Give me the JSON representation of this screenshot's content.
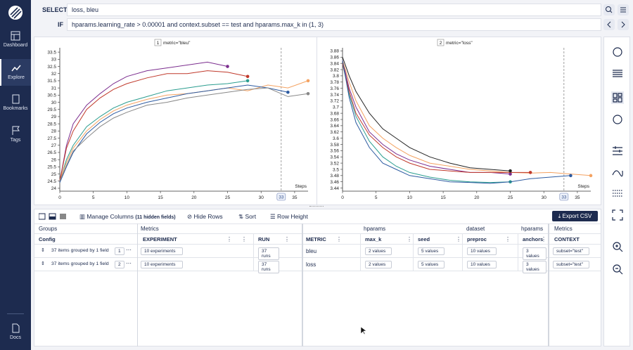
{
  "nav": [
    "Dashboard",
    "Explore",
    "Bookmarks",
    "Tags",
    "Docs"
  ],
  "query": {
    "select_label": "SELECT",
    "select": "loss, bleu",
    "if_label": "IF",
    "if": "hparams.learning_rate > 0.00001 and context.subset == test and hparams.max_k in (1, 3)"
  },
  "chart_data": [
    {
      "type": "line",
      "panel": "1",
      "title": "metric=\"bleu\"",
      "xlabel": "Steps",
      "cursor": 33,
      "x": [
        0,
        1,
        2,
        4,
        6,
        8,
        10,
        13,
        16,
        19,
        22,
        25,
        28,
        31,
        34,
        37
      ],
      "xlim": [
        0,
        37
      ],
      "xticks": [
        0,
        5,
        10,
        15,
        20,
        25,
        30,
        35
      ],
      "ylim": [
        23.8,
        33.8
      ],
      "yticks": [
        24,
        24.5,
        25,
        25.5,
        26,
        26.5,
        27,
        27.5,
        28,
        28.5,
        29,
        29.5,
        30,
        30.5,
        31,
        31.5,
        32,
        32.5,
        33,
        33.5
      ],
      "series": [
        {
          "color": "#7b2d8e",
          "values": [
            24.5,
            27,
            28.5,
            29.8,
            30.6,
            31.3,
            31.8,
            32.2,
            32.4,
            32.6,
            32.8,
            32.5,
            null,
            null,
            null,
            null
          ]
        },
        {
          "color": "#2a9d8f",
          "values": [
            24.5,
            26,
            27,
            28.3,
            29,
            29.6,
            30,
            30.4,
            30.8,
            31,
            31.2,
            31.3,
            31.5,
            null,
            null,
            null
          ]
        },
        {
          "color": "#f4a261",
          "values": [
            24.6,
            25.8,
            26.8,
            28,
            28.8,
            29.4,
            29.8,
            30.2,
            30.5,
            30.6,
            30.8,
            31,
            30.8,
            31.2,
            31,
            31.5
          ]
        },
        {
          "color": "#c0392b",
          "values": [
            24.5,
            26.8,
            28,
            29.5,
            30.3,
            30.9,
            31.3,
            31.7,
            32,
            32,
            32.2,
            32.1,
            31.8,
            null,
            null,
            null
          ]
        },
        {
          "color": "#2c5aa0",
          "values": [
            24.4,
            25.5,
            26.5,
            27.8,
            28.6,
            29.2,
            29.6,
            30,
            30.3,
            30.6,
            30.8,
            31,
            31.2,
            31,
            30.7,
            null
          ]
        },
        {
          "color": "#888888",
          "values": [
            24.5,
            25.6,
            26.6,
            27.5,
            28.3,
            28.9,
            29.3,
            29.8,
            30,
            30.3,
            30.5,
            30.7,
            30.9,
            31,
            30.4,
            30.6
          ]
        }
      ]
    },
    {
      "type": "line",
      "panel": "2",
      "title": "metric=\"loss\"",
      "xlabel": "Steps",
      "cursor": 33,
      "x": [
        0,
        1,
        2,
        4,
        6,
        8,
        10,
        13,
        16,
        19,
        22,
        25,
        28,
        31,
        34,
        37
      ],
      "xlim": [
        0,
        37
      ],
      "xticks": [
        0,
        5,
        10,
        15,
        20,
        25,
        30,
        35
      ],
      "ylim": [
        3.43,
        3.89
      ],
      "yticks": [
        3.44,
        3.46,
        3.48,
        3.5,
        3.52,
        3.54,
        3.56,
        3.58,
        3.6,
        3.62,
        3.64,
        3.66,
        3.68,
        3.7,
        3.72,
        3.74,
        3.76,
        3.78,
        3.8,
        3.82,
        3.84,
        3.86,
        3.88
      ],
      "series": [
        {
          "color": "#7b2d8e",
          "values": [
            3.85,
            3.76,
            3.7,
            3.62,
            3.58,
            3.55,
            3.53,
            3.51,
            3.5,
            3.49,
            3.49,
            3.485,
            null,
            null,
            null,
            null
          ]
        },
        {
          "color": "#2a9d8f",
          "values": [
            3.84,
            3.74,
            3.67,
            3.59,
            3.54,
            3.51,
            3.49,
            3.475,
            3.465,
            3.46,
            3.458,
            3.46,
            null,
            null,
            null,
            null
          ]
        },
        {
          "color": "#f4a261",
          "values": [
            3.85,
            3.78,
            3.72,
            3.64,
            3.6,
            3.57,
            3.545,
            3.52,
            3.51,
            3.5,
            3.495,
            3.49,
            3.488,
            3.49,
            3.485,
            3.48
          ]
        },
        {
          "color": "#c0392b",
          "values": [
            3.84,
            3.75,
            3.68,
            3.61,
            3.57,
            3.54,
            3.52,
            3.5,
            3.495,
            3.49,
            3.49,
            3.49,
            3.49,
            null,
            null,
            null
          ]
        },
        {
          "color": "#2c5aa0",
          "values": [
            3.85,
            3.73,
            3.65,
            3.57,
            3.52,
            3.5,
            3.48,
            3.47,
            3.46,
            3.458,
            3.455,
            3.46,
            3.47,
            3.475,
            3.48,
            null
          ]
        },
        {
          "color": "#222222",
          "values": [
            3.86,
            3.8,
            3.75,
            3.68,
            3.63,
            3.6,
            3.57,
            3.54,
            3.52,
            3.505,
            3.5,
            3.495,
            null,
            null,
            null,
            null
          ]
        }
      ]
    }
  ],
  "toolbar": {
    "manage": "Manage Columns",
    "hidden": "(11 hidden fields)",
    "hide_rows": "Hide Rows",
    "sort": "Sort",
    "row_height": "Row Height",
    "export": "Export CSV"
  },
  "table": {
    "groups": [
      "Groups",
      "Metrics",
      "hparams",
      "dataset",
      "hparams",
      "Metrics"
    ],
    "columns": [
      "Config",
      "EXPERIMENT",
      "RUN",
      "METRIC",
      "max_k",
      "seed",
      "preproc",
      "anchors",
      "CONTEXT"
    ],
    "rows": [
      [
        "37 items grouped by 1 field",
        "1",
        "10 experiments",
        "37 runs",
        "bleu",
        "2 values",
        "5 values",
        "10 values",
        "3 values",
        "subset=\"test\""
      ],
      [
        "37 items grouped by 1 field",
        "2",
        "10 experiments",
        "37 runs",
        "loss",
        "2 values",
        "5 values",
        "10 values",
        "3 values",
        "subset=\"test\""
      ]
    ]
  }
}
